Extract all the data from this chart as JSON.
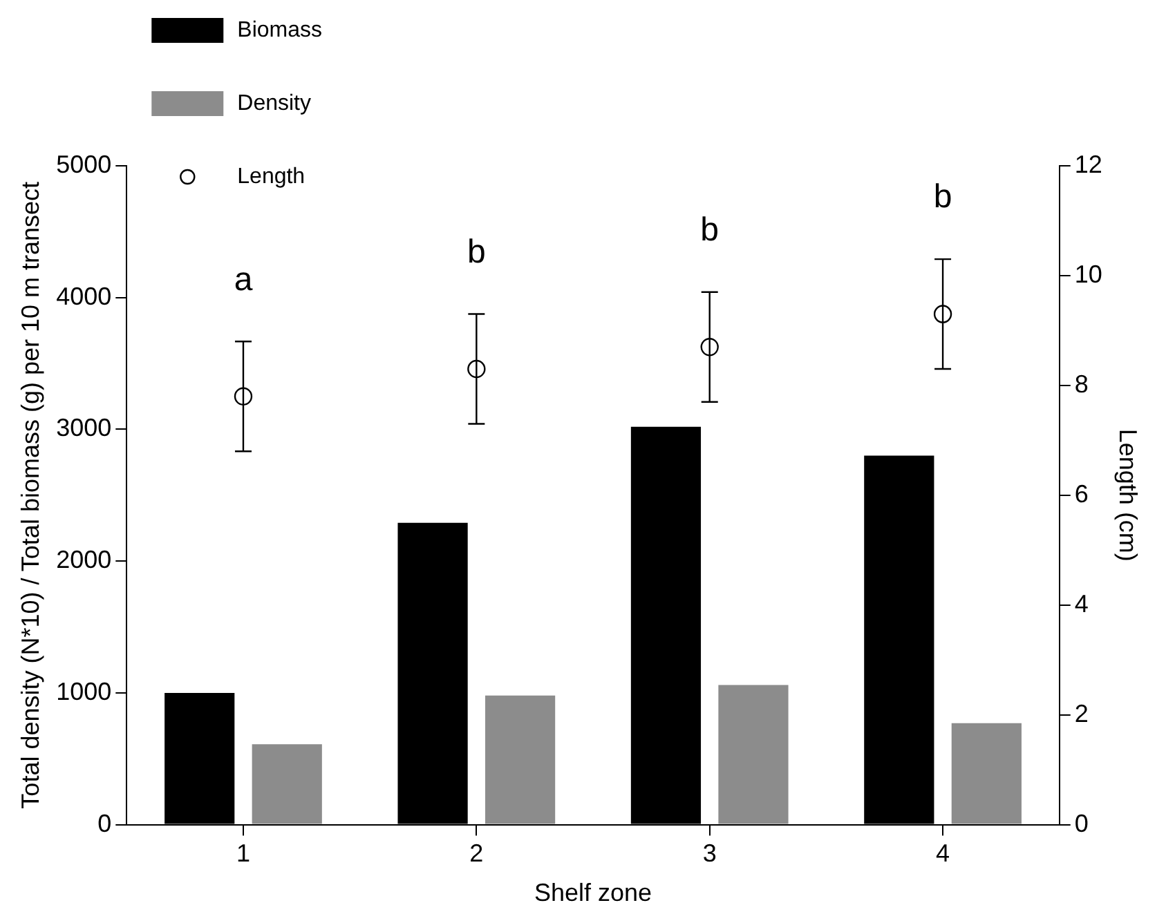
{
  "chart_data": {
    "type": "bar",
    "xlabel": "Shelf zone",
    "ylabel": "Total density (N*10) / Total biomass (g) per 10 m transect",
    "y2label": "Length (cm)",
    "categories": [
      "1",
      "2",
      "3",
      "4"
    ],
    "series": [
      {
        "name": "Biomass",
        "color": "#000000",
        "values": [
          1000,
          2290,
          3020,
          2800
        ]
      },
      {
        "name": "Density",
        "color": "#8c8c8c",
        "values": [
          610,
          980,
          1060,
          770
        ]
      },
      {
        "name": "Length",
        "type": "scatter",
        "axis": "y2",
        "color": "#ffffff",
        "marker": "circle",
        "values": [
          7.8,
          8.3,
          8.7,
          9.3
        ],
        "errors": [
          1.0,
          1.0,
          1.0,
          1.0
        ]
      }
    ],
    "ylim": [
      0,
      5000
    ],
    "yticks": [
      0,
      1000,
      2000,
      3000,
      4000,
      5000
    ],
    "y2lim": [
      0,
      12
    ],
    "y2ticks": [
      0,
      2,
      4,
      6,
      8,
      10,
      12
    ],
    "grid": false,
    "legend": "top left",
    "annotations": [
      "a",
      "b",
      "b",
      "b"
    ]
  }
}
